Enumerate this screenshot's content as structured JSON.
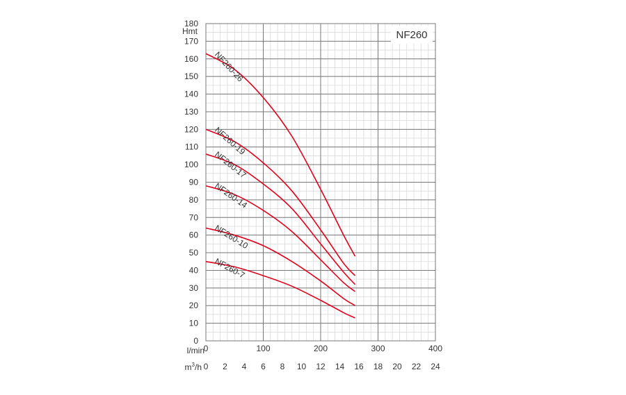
{
  "chart_data": {
    "type": "line",
    "title": "NF260",
    "ylabel": "Hmt",
    "xlabel": "l/min",
    "x2label_base": "m",
    "x2label_sup": "3",
    "x2label_tail": "/h",
    "xlim": [
      0,
      400
    ],
    "ylim": [
      0,
      180
    ],
    "x_ticks": [
      "0",
      "100",
      "200",
      "300",
      "400"
    ],
    "y_ticks": [
      "0",
      "10",
      "20",
      "30",
      "40",
      "50",
      "60",
      "70",
      "80",
      "90",
      "100",
      "110",
      "120",
      "130",
      "140",
      "150",
      "160",
      "170",
      "180"
    ],
    "x2_ticks": [
      "0",
      "2",
      "4",
      "6",
      "8",
      "10",
      "12",
      "14",
      "16",
      "18",
      "20",
      "22",
      "24"
    ],
    "grid": true,
    "line_color": "#e2001a",
    "series": [
      {
        "name": "NF260-26",
        "x": [
          0,
          50,
          100,
          150,
          200,
          240,
          260
        ],
        "y": [
          163,
          154,
          138,
          116,
          86,
          60,
          48
        ]
      },
      {
        "name": "NF260-19",
        "x": [
          0,
          50,
          100,
          150,
          200,
          240,
          260
        ],
        "y": [
          120,
          113,
          101,
          85,
          63,
          44,
          37
        ]
      },
      {
        "name": "NF260-17",
        "x": [
          0,
          50,
          100,
          150,
          200,
          240,
          260
        ],
        "y": [
          106,
          100,
          89,
          75,
          55,
          39,
          32
        ]
      },
      {
        "name": "NF260-14",
        "x": [
          0,
          50,
          100,
          150,
          200,
          240,
          260
        ],
        "y": [
          88,
          83,
          74,
          62,
          46,
          33,
          28
        ]
      },
      {
        "name": "NF260-10",
        "x": [
          0,
          50,
          100,
          150,
          200,
          240,
          260
        ],
        "y": [
          64,
          60,
          54,
          45,
          34,
          24,
          20
        ]
      },
      {
        "name": "NF260-7",
        "x": [
          0,
          50,
          100,
          150,
          200,
          240,
          260
        ],
        "y": [
          45,
          42,
          37,
          31,
          23,
          16,
          13
        ]
      }
    ]
  }
}
